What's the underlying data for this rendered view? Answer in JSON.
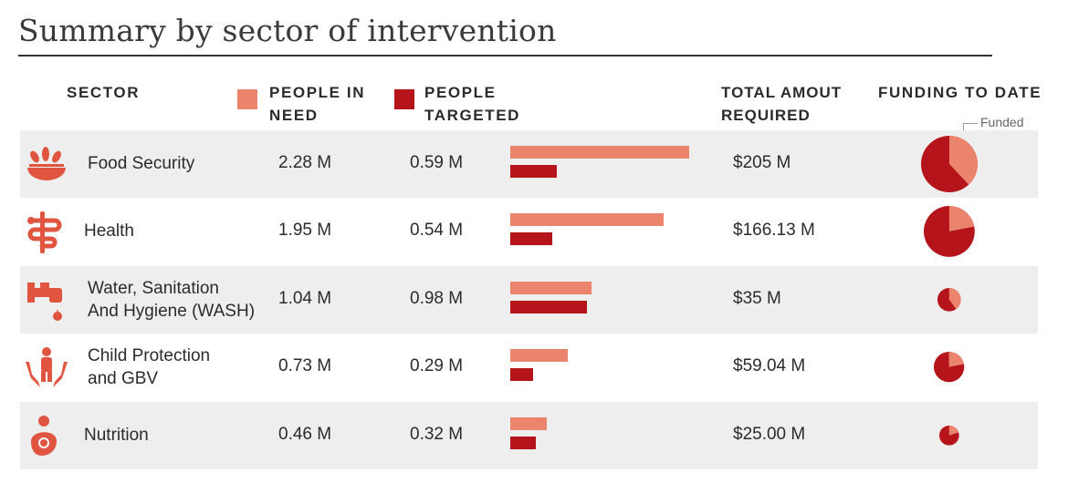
{
  "title": "Summary by sector of intervention",
  "headers": {
    "sector": "SECTOR",
    "people_in_need_1": "PEOPLE IN",
    "people_in_need_2": "NEED",
    "people_targeted_1": "PEOPLE",
    "people_targeted_2": "TARGETED",
    "total_1": "TOTAL AMOUT",
    "total_2": "REQUIRED",
    "funding": "FUNDING TO DATE"
  },
  "funded_label": "Funded",
  "colors": {
    "people_in_need": "#ea846d",
    "people_targeted": "#b5141b",
    "icon": "#e0553f"
  },
  "chart_data": {
    "type": "table",
    "title": "Summary by sector of intervention",
    "series": [
      {
        "name": "PEOPLE IN NEED",
        "unit": "M",
        "values": [
          2.28,
          1.95,
          1.04,
          0.73,
          0.46
        ]
      },
      {
        "name": "PEOPLE TARGETED",
        "unit": "M",
        "values": [
          0.59,
          0.54,
          0.98,
          0.29,
          0.32
        ]
      }
    ],
    "categories": [
      "Food Security",
      "Health",
      "Water, Sanitation And Hygiene (WASH)",
      "Child Protection and GBV",
      "Nutrition"
    ],
    "total_required_musd": [
      205,
      166.13,
      35,
      59.04,
      25.0
    ],
    "funded_fraction": [
      0.38,
      0.22,
      0.4,
      0.22,
      0.2
    ],
    "rows": [
      {
        "sector_1": "Food Security",
        "sector_2": "",
        "icon": "food-bowl-icon",
        "pin_label": "2.28 M",
        "pt_label": "0.59 M",
        "total_label": "$205 M",
        "pin": 2.28,
        "pt": 0.59,
        "total": 205,
        "funded": 0.38
      },
      {
        "sector_1": "Health",
        "sector_2": "",
        "icon": "caduceus-icon",
        "pin_label": "1.95 M",
        "pt_label": "0.54 M",
        "total_label": "$166.13 M",
        "pin": 1.95,
        "pt": 0.54,
        "total": 166.13,
        "funded": 0.22
      },
      {
        "sector_1": "Water, Sanitation",
        "sector_2": "And Hygiene (WASH)",
        "icon": "tap-icon",
        "pin_label": "1.04 M",
        "pt_label": "0.98 M",
        "total_label": "$35 M",
        "pin": 1.04,
        "pt": 0.98,
        "total": 35,
        "funded": 0.4
      },
      {
        "sector_1": "Child Protection",
        "sector_2": "and GBV",
        "icon": "child-protection-icon",
        "pin_label": "0.73 M",
        "pt_label": "0.29 M",
        "total_label": "$59.04 M",
        "pin": 0.73,
        "pt": 0.29,
        "total": 59.04,
        "funded": 0.22
      },
      {
        "sector_1": "Nutrition",
        "sector_2": "",
        "icon": "mother-child-icon",
        "pin_label": "0.46 M",
        "pt_label": "0.32 M",
        "total_label": "$25.00 M",
        "pin": 0.46,
        "pt": 0.32,
        "total": 25.0,
        "funded": 0.2
      }
    ]
  }
}
